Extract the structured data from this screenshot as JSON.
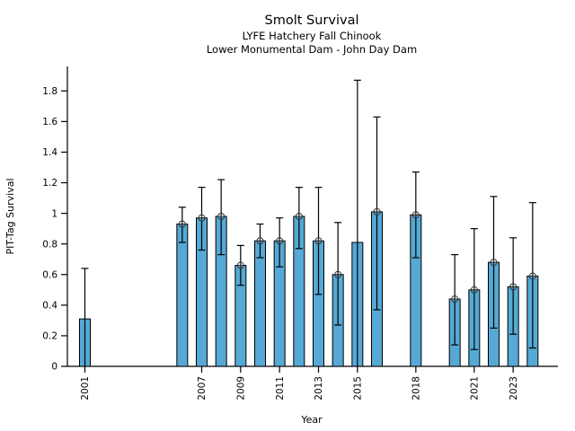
{
  "chart_data": {
    "type": "bar",
    "title": "Smolt Survival",
    "subtitle1": "LYFE Hatchery Fall Chinook",
    "subtitle2": "Lower Monumental Dam - John Day Dam",
    "xlabel": "Year",
    "ylabel": "PIT-Tag Survival",
    "xlim": [
      2000.1,
      2025.3
    ],
    "ylim": [
      0,
      1.96
    ],
    "grid": false,
    "legend": "none",
    "bar_color": "#55a9d4",
    "edge_color": "#000000",
    "marker_color": "#333333",
    "yticks": [
      {
        "value": 0.0,
        "label": "0"
      },
      {
        "value": 0.2,
        "label": "0.2"
      },
      {
        "value": 0.4,
        "label": "0.4"
      },
      {
        "value": 0.6,
        "label": "0.6"
      },
      {
        "value": 0.8,
        "label": "0.8"
      },
      {
        "value": 1.0,
        "label": "1"
      },
      {
        "value": 1.2,
        "label": "1.2"
      },
      {
        "value": 1.4,
        "label": "1.4"
      },
      {
        "value": 1.6,
        "label": "1.6"
      },
      {
        "value": 1.8,
        "label": "1.8"
      }
    ],
    "xticks": [
      2001,
      2007,
      2009,
      2011,
      2013,
      2015,
      2018,
      2021,
      2023
    ],
    "series": [
      {
        "year": 2001,
        "survival": 0.31,
        "ci_low": 0.0,
        "ci_high": 0.64,
        "marker": false
      },
      {
        "year": 2006,
        "survival": 0.93,
        "ci_low": 0.81,
        "ci_high": 1.04,
        "marker": true
      },
      {
        "year": 2007,
        "survival": 0.97,
        "ci_low": 0.76,
        "ci_high": 1.17,
        "marker": true
      },
      {
        "year": 2008,
        "survival": 0.98,
        "ci_low": 0.73,
        "ci_high": 1.22,
        "marker": true
      },
      {
        "year": 2009,
        "survival": 0.66,
        "ci_low": 0.53,
        "ci_high": 0.79,
        "marker": true
      },
      {
        "year": 2010,
        "survival": 0.82,
        "ci_low": 0.71,
        "ci_high": 0.93,
        "marker": true
      },
      {
        "year": 2011,
        "survival": 0.82,
        "ci_low": 0.65,
        "ci_high": 0.97,
        "marker": true
      },
      {
        "year": 2012,
        "survival": 0.98,
        "ci_low": 0.77,
        "ci_high": 1.17,
        "marker": true
      },
      {
        "year": 2013,
        "survival": 0.82,
        "ci_low": 0.47,
        "ci_high": 1.17,
        "marker": true
      },
      {
        "year": 2014,
        "survival": 0.6,
        "ci_low": 0.27,
        "ci_high": 0.94,
        "marker": true
      },
      {
        "year": 2015,
        "survival": 0.81,
        "ci_low": 0.0,
        "ci_high": 1.87,
        "marker": false
      },
      {
        "year": 2016,
        "survival": 1.01,
        "ci_low": 0.37,
        "ci_high": 1.63,
        "marker": true
      },
      {
        "year": 2018,
        "survival": 0.99,
        "ci_low": 0.71,
        "ci_high": 1.27,
        "marker": true
      },
      {
        "year": 2020,
        "survival": 0.44,
        "ci_low": 0.14,
        "ci_high": 0.73,
        "marker": true
      },
      {
        "year": 2021,
        "survival": 0.5,
        "ci_low": 0.11,
        "ci_high": 0.9,
        "marker": true
      },
      {
        "year": 2022,
        "survival": 0.68,
        "ci_low": 0.25,
        "ci_high": 1.11,
        "marker": true
      },
      {
        "year": 2023,
        "survival": 0.52,
        "ci_low": 0.21,
        "ci_high": 0.84,
        "marker": true
      },
      {
        "year": 2024,
        "survival": 0.59,
        "ci_low": 0.12,
        "ci_high": 1.07,
        "marker": true
      }
    ]
  }
}
